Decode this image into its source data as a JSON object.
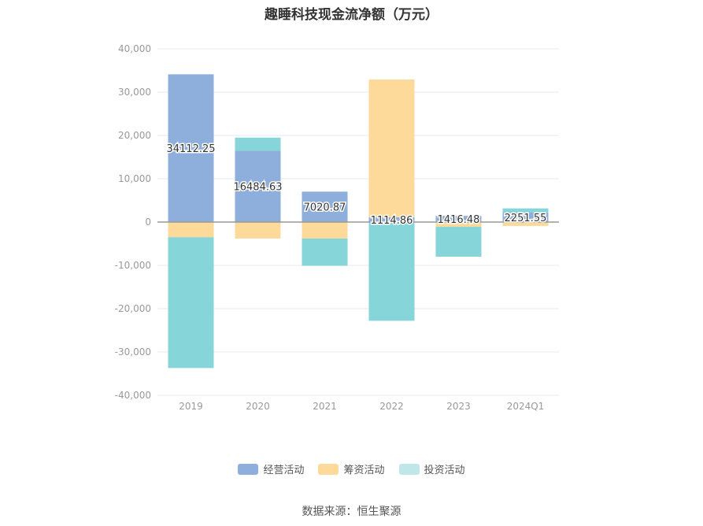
{
  "title": "趣睡科技现金流净额（万元）",
  "source": "数据来源：恒生聚源",
  "colors": {
    "operating": "#8eaedb",
    "financing": "#fdd99a",
    "investing": "#85d5d9",
    "investing_legend": "#bfe7ea",
    "grid": "#e6e9f0",
    "axis_text": "#999999",
    "zero_line": "#999999"
  },
  "chart_data": {
    "type": "bar",
    "stacked": true,
    "categories": [
      "2019",
      "2020",
      "2021",
      "2022",
      "2023",
      "2024Q1"
    ],
    "yticks": [
      "40,000",
      "30,000",
      "20,000",
      "10,000",
      "0",
      "-10,000",
      "-20,000",
      "-30,000",
      "-40,000"
    ],
    "ylim": [
      -40000,
      40000
    ],
    "series": [
      {
        "name": "经营活动",
        "key": "operating",
        "values": [
          34112.25,
          16484.63,
          7020.87,
          1114.86,
          1416.48,
          2251.55
        ]
      },
      {
        "name": "筹资活动",
        "key": "financing",
        "values": [
          -3500,
          -3800,
          -3800,
          31800,
          -1100,
          -900
        ]
      },
      {
        "name": "投资活动",
        "key": "investing",
        "values": [
          -30200,
          3000,
          -6300,
          -22800,
          -6900,
          900
        ]
      }
    ],
    "data_labels": [
      "34112.25",
      "16484.63",
      "7020.87",
      "1114.86",
      "1416.48",
      "2251.55"
    ],
    "legend_position": "bottom",
    "grid": true
  }
}
